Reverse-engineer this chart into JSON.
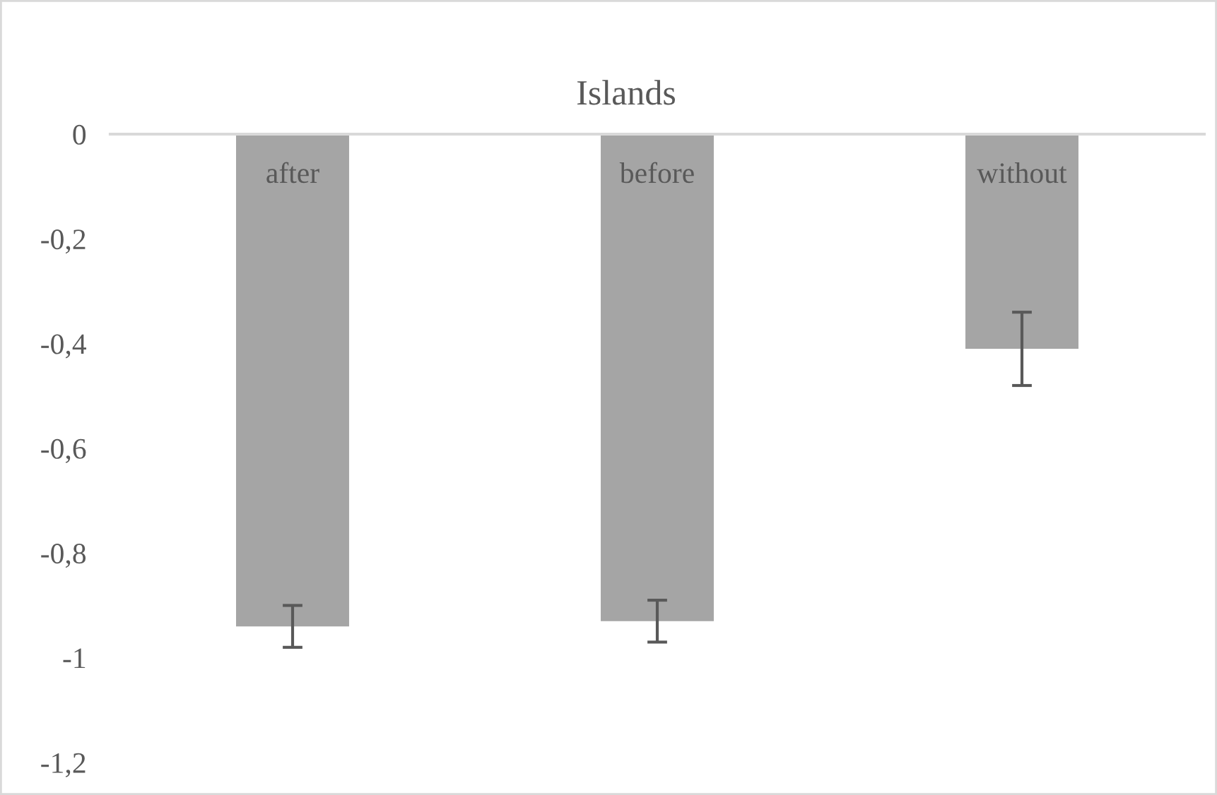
{
  "chart_data": {
    "type": "bar",
    "title": "Islands",
    "categories": [
      "after",
      "before",
      "without"
    ],
    "values": [
      -0.94,
      -0.93,
      -0.41
    ],
    "errors": [
      0.04,
      0.04,
      0.07
    ],
    "color": "#a5a5a5",
    "ylim": [
      -1.2,
      0
    ],
    "yticks": [
      0,
      {
        "value": -0.2,
        "label": "-0,2"
      },
      {
        "value": -0.4,
        "label": "-0,4"
      },
      {
        "value": -0.6,
        "label": "-0,6"
      },
      {
        "value": -0.8,
        "label": "-0,8"
      },
      -1,
      {
        "value": -1.2,
        "label": "-1,2"
      }
    ],
    "grid": false
  }
}
